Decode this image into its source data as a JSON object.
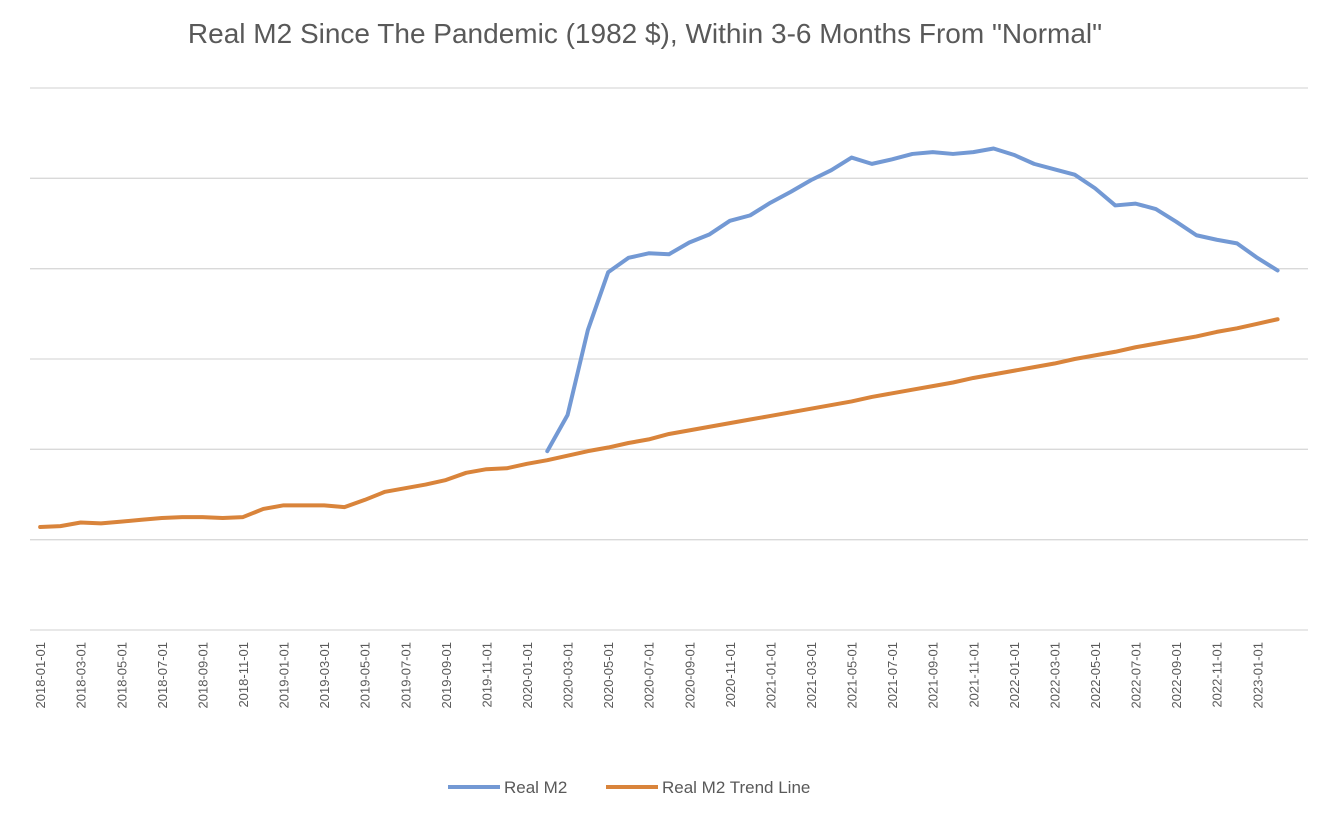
{
  "chart_data": {
    "type": "line",
    "title": "Real M2 Since The Pandemic (1982 $), Within 3-6 Months From \"Normal\"",
    "xlabel": "",
    "ylabel": "",
    "y_tick_labels_shown": false,
    "grid": "horizontal",
    "legend_placement": "bottom-center",
    "x": [
      "2018-01-01",
      "2018-02-01",
      "2018-03-01",
      "2018-04-01",
      "2018-05-01",
      "2018-06-01",
      "2018-07-01",
      "2018-08-01",
      "2018-09-01",
      "2018-10-01",
      "2018-11-01",
      "2018-12-01",
      "2019-01-01",
      "2019-02-01",
      "2019-03-01",
      "2019-04-01",
      "2019-05-01",
      "2019-06-01",
      "2019-07-01",
      "2019-08-01",
      "2019-09-01",
      "2019-10-01",
      "2019-11-01",
      "2019-12-01",
      "2020-01-01",
      "2020-02-01",
      "2020-03-01",
      "2020-04-01",
      "2020-05-01",
      "2020-06-01",
      "2020-07-01",
      "2020-08-01",
      "2020-09-01",
      "2020-10-01",
      "2020-11-01",
      "2020-12-01",
      "2021-01-01",
      "2021-02-01",
      "2021-03-01",
      "2021-04-01",
      "2021-05-01",
      "2021-06-01",
      "2021-07-01",
      "2021-08-01",
      "2021-09-01",
      "2021-10-01",
      "2021-11-01",
      "2021-12-01",
      "2022-01-01",
      "2022-02-01",
      "2022-03-01",
      "2022-04-01",
      "2022-05-01",
      "2022-06-01",
      "2022-07-01",
      "2022-08-01",
      "2022-09-01",
      "2022-10-01",
      "2022-11-01",
      "2022-12-01",
      "2023-01-01",
      "2023-02-01",
      "2023-03-01"
    ],
    "x_tick_labels": [
      "2018-01-01",
      "2018-03-01",
      "2018-05-01",
      "2018-07-01",
      "2018-09-01",
      "2018-11-01",
      "2019-01-01",
      "2019-03-01",
      "2019-05-01",
      "2019-07-01",
      "2019-09-01",
      "2019-11-01",
      "2020-01-01",
      "2020-03-01",
      "2020-05-01",
      "2020-07-01",
      "2020-09-01",
      "2020-11-01",
      "2021-01-01",
      "2021-03-01",
      "2021-05-01",
      "2021-07-01",
      "2021-09-01",
      "2021-11-01",
      "2022-01-01",
      "2022-03-01",
      "2022-05-01",
      "2022-07-01",
      "2022-09-01",
      "2022-11-01",
      "2023-01-01"
    ],
    "ylim": [
      0,
      6
    ],
    "series": [
      {
        "name": "Real M2",
        "color": "#7399D4",
        "values": [
          null,
          null,
          null,
          null,
          null,
          null,
          null,
          null,
          null,
          null,
          null,
          null,
          null,
          null,
          null,
          null,
          null,
          null,
          null,
          null,
          null,
          null,
          null,
          null,
          null,
          1.98,
          2.38,
          3.32,
          3.96,
          4.12,
          4.17,
          4.16,
          4.29,
          4.38,
          4.53,
          4.59,
          4.73,
          4.85,
          4.98,
          5.09,
          5.23,
          5.16,
          5.21,
          5.27,
          5.29,
          5.27,
          5.29,
          5.33,
          5.26,
          5.16,
          5.1,
          5.04,
          4.89,
          4.7,
          4.72,
          4.66,
          4.52,
          4.37,
          4.32,
          4.28,
          4.12,
          3.98,
          null
        ]
      },
      {
        "name": "Real M2 Trend Line",
        "color": "#D9843B",
        "values": [
          1.14,
          1.15,
          1.19,
          1.18,
          1.2,
          1.22,
          1.24,
          1.25,
          1.25,
          1.24,
          1.25,
          1.34,
          1.38,
          1.38,
          1.38,
          1.36,
          1.44,
          1.53,
          1.57,
          1.61,
          1.66,
          1.74,
          1.78,
          1.79,
          1.84,
          1.88,
          1.93,
          1.98,
          2.02,
          2.07,
          2.11,
          2.17,
          2.21,
          2.25,
          2.29,
          2.33,
          2.37,
          2.41,
          2.45,
          2.49,
          2.53,
          2.58,
          2.62,
          2.66,
          2.7,
          2.74,
          2.79,
          2.83,
          2.87,
          2.91,
          2.95,
          3.0,
          3.04,
          3.08,
          3.13,
          3.17,
          3.21,
          3.25,
          3.3,
          3.34,
          3.39,
          3.44,
          null
        ]
      }
    ]
  }
}
